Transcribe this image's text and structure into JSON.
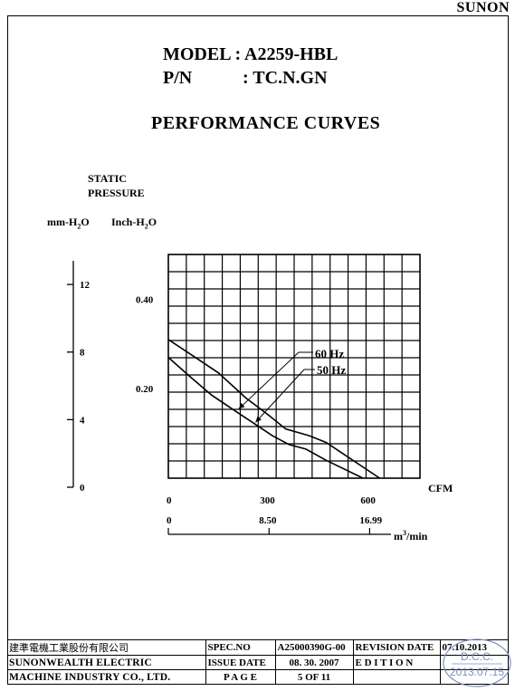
{
  "brand": "SUNON",
  "header": {
    "model_line": "MODEL : A2259-HBL",
    "pn_label": "P/N",
    "pn_value": ": TC.N.GN",
    "title": "PERFORMANCE  CURVES"
  },
  "chart_data": {
    "type": "line",
    "title": "PERFORMANCE  CURVES",
    "ylabel_line1": "STATIC",
    "ylabel_line2": "PRESSURE",
    "y_unit_mm": "mm-H",
    "y_unit_mm_sub": "2",
    "y_unit_mm_tail": "O",
    "y_unit_inch": "Inch-H",
    "y_unit_inch_sub": "2",
    "y_unit_inch_tail": "O",
    "y_mm_ticks": [
      "12",
      "8",
      "4",
      "0"
    ],
    "y_mm_values": [
      12,
      8,
      4,
      0
    ],
    "y_inch_ticks": [
      "0.40",
      "0.20"
    ],
    "y_inch_values": [
      0.4,
      0.2
    ],
    "x_cfm_label": "CFM",
    "x_cfm_ticks": [
      "0",
      "300",
      "600"
    ],
    "x_cfm_values": [
      0,
      300,
      600
    ],
    "x_m3_label": "m",
    "x_m3_sup": "3",
    "x_m3_tail": "/min",
    "x_m3_ticks": [
      "0",
      "8.50",
      "16.99"
    ],
    "x_m3_values": [
      0,
      8.5,
      16.99
    ],
    "xlim": [
      0,
      750
    ],
    "ylim_inch": [
      0,
      0.5
    ],
    "grid": true,
    "series": [
      {
        "name": "60 Hz",
        "x": [
          0,
          80,
          150,
          230,
          300,
          350,
          420,
          470,
          540,
          630
        ],
        "y": [
          0.31,
          0.27,
          0.235,
          0.18,
          0.14,
          0.11,
          0.095,
          0.08,
          0.045,
          0.0
        ]
      },
      {
        "name": "50 Hz",
        "x": [
          0,
          60,
          130,
          200,
          260,
          310,
          360,
          410,
          470,
          580
        ],
        "y": [
          0.27,
          0.23,
          0.185,
          0.15,
          0.12,
          0.095,
          0.075,
          0.065,
          0.04,
          0.0
        ]
      }
    ]
  },
  "footer": {
    "company_cn": "建準電機工業股份有限公司",
    "company_en1": "SUNONWEALTH  ELECTRIC",
    "company_en2": "MACHINE  INDUSTRY  CO.,  LTD.",
    "spec_no_label": "SPEC.NO",
    "spec_no_value": "A25000390G-00",
    "revision_label": "REVISION DATE",
    "revision_value": "07.10.2013",
    "issue_label": "ISSUE DATE",
    "issue_value": "08. 30. 2007",
    "edition_label": "E D I T I O N",
    "edition_value": "",
    "page_label": "P A G E",
    "page_value": "5   OF   11"
  },
  "stamp": {
    "line1": "D.C.C.",
    "line2": "2013.07.15"
  }
}
